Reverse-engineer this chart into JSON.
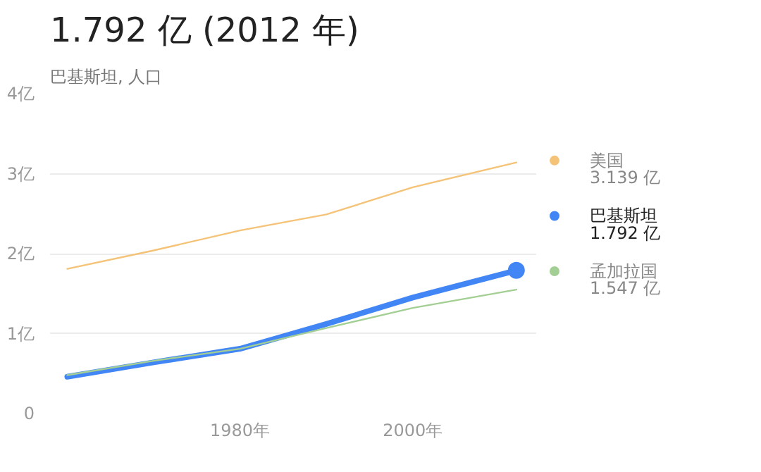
{
  "chart_data": {
    "type": "line",
    "title": "1.792 亿 (2012 年)",
    "subtitle": "巴基斯坦, 人口",
    "x": [
      1960,
      1970,
      1980,
      1990,
      2000,
      2012
    ],
    "xlim": [
      1958,
      2014.3
    ],
    "xticks": [
      {
        "value": 1980,
        "label": "1980年"
      },
      {
        "value": 2000,
        "label": "2000年"
      }
    ],
    "ylim": [
      0,
      4
    ],
    "yticks": [
      0,
      {
        "value": 1,
        "label": "1亿"
      },
      {
        "value": 2,
        "label": "2亿"
      },
      {
        "value": 3,
        "label": "3亿"
      },
      {
        "value": 4,
        "label": "4亿"
      }
    ],
    "grid": "y",
    "legend": "right",
    "annotations": [
      "3.139 亿",
      "1.792 亿",
      "1.547 亿"
    ],
    "series": [
      {
        "name": "美国",
        "color": "#f5c378",
        "values": [
          1.81,
          2.04,
          2.29,
          2.49,
          2.83,
          3.14
        ]
      },
      {
        "name": "巴基斯坦",
        "color": "#4285f4",
        "values": [
          0.46,
          0.64,
          0.81,
          1.12,
          1.45,
          1.79
        ]
      },
      {
        "name": "孟加拉国",
        "color": "#a3cf94",
        "values": [
          0.48,
          0.66,
          0.81,
          1.07,
          1.32,
          1.55
        ]
      },
      {
        "type": "scatter",
        "color": "#4285f4",
        "x": [
          2012
        ],
        "values": [
          1.79
        ],
        "marker": "circle"
      }
    ]
  }
}
